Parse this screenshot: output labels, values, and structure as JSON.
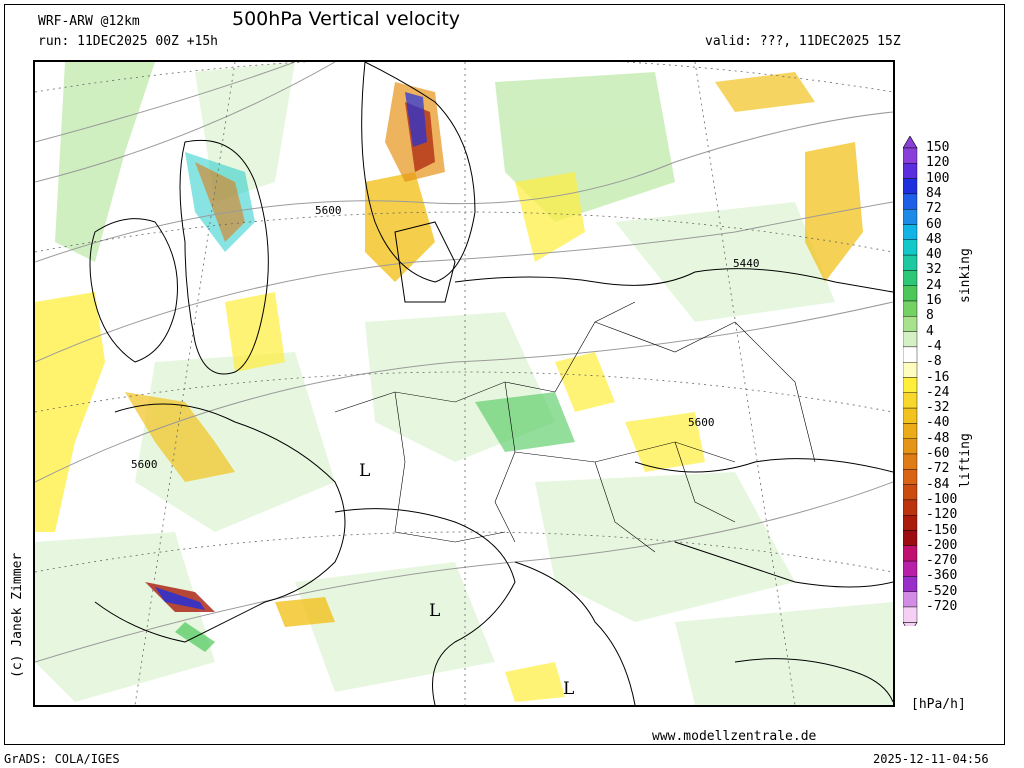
{
  "header": {
    "model": "WRF-ARW @12km",
    "title": "500hPa Vertical velocity",
    "run": "run: 11DEC2025 00Z +15h",
    "valid": "valid: ???, 11DEC2025 15Z"
  },
  "map": {
    "contour_labels": [
      "5600",
      "5600",
      "5440",
      "5600"
    ],
    "pressure_labels": [
      "L",
      "L",
      "L"
    ]
  },
  "colorbar": {
    "levels": [
      "150",
      "120",
      "100",
      "84",
      "72",
      "60",
      "48",
      "40",
      "32",
      "24",
      "16",
      "8",
      "4",
      "-4",
      "-8",
      "-16",
      "-24",
      "-32",
      "-40",
      "-48",
      "-60",
      "-72",
      "-84",
      "-100",
      "-120",
      "-150",
      "-200",
      "-270",
      "-360",
      "-520",
      "-720"
    ],
    "colors": [
      "#8a3fd8",
      "#5b2ee0",
      "#1e2fe0",
      "#1e5fe8",
      "#1e8ae8",
      "#12b4e6",
      "#12c8c8",
      "#1ec8a0",
      "#2cc878",
      "#4cc85a",
      "#74d264",
      "#a8e28c",
      "#d4f0c4",
      "#ffffff",
      "#fffcc0",
      "#ffee3c",
      "#f8d82c",
      "#f2c21e",
      "#ecac1a",
      "#e69418",
      "#e07c16",
      "#d86414",
      "#cc4c10",
      "#bc340e",
      "#aa1c0c",
      "#9c0c10",
      "#c01070",
      "#b820a8",
      "#9a2ec8",
      "#d28ce4",
      "#f6d0f4"
    ],
    "label_sinking": "sinking",
    "label_lifting": "lifting",
    "unit": "[hPa/h]"
  },
  "footer": {
    "copyright": "(c) Janek Zimmer",
    "website": "www.modellzentrale.de",
    "software": "GrADS: COLA/IGES",
    "timestamp": "2025-12-11-04:56"
  }
}
